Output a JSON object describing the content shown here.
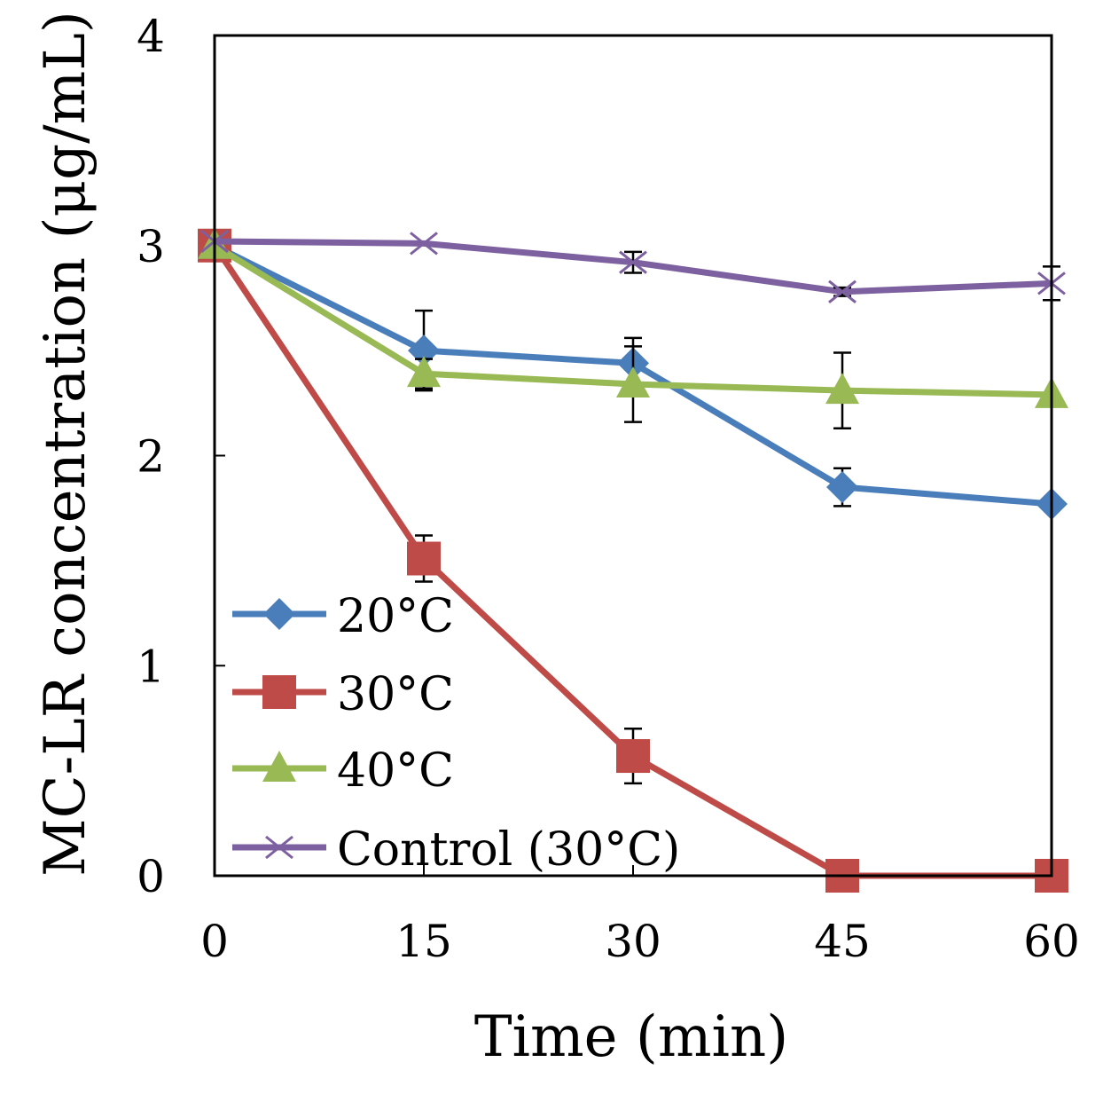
{
  "chart_data": {
    "type": "line",
    "title": "",
    "xlabel": "Time (min)",
    "ylabel": "MC-LR concentration (μg/mL)",
    "x": [
      0,
      15,
      30,
      45,
      60
    ],
    "x_ticks": [
      "0",
      "15",
      "30",
      "45",
      "60"
    ],
    "y_ticks": [
      "0",
      "1",
      "2",
      "3",
      "4"
    ],
    "xlim": [
      0,
      60
    ],
    "ylim": [
      0,
      4
    ],
    "grid": false,
    "legend_position": "bottom-left",
    "series": [
      {
        "name": "20°C",
        "color": "#4a7ebb",
        "marker": "diamond",
        "values": [
          3.0,
          2.5,
          2.44,
          1.85,
          1.77
        ],
        "errors": [
          0,
          0.19,
          0.12,
          0.09,
          0
        ]
      },
      {
        "name": "30°C",
        "color": "#be4b48",
        "marker": "square",
        "values": [
          3.0,
          1.51,
          0.57,
          0.0,
          0.0
        ],
        "errors": [
          0,
          0.11,
          0.13,
          0,
          0
        ]
      },
      {
        "name": "40°C",
        "color": "#98b954",
        "marker": "triangle",
        "values": [
          3.0,
          2.39,
          2.34,
          2.31,
          2.29
        ],
        "errors": [
          0,
          0.07,
          0.18,
          0.18,
          0
        ]
      },
      {
        "name": "Control (30°C)",
        "color": "#7d60a0",
        "marker": "x",
        "values": [
          3.02,
          3.01,
          2.92,
          2.78,
          2.82
        ],
        "errors": [
          0,
          0,
          0.05,
          0.02,
          0.08
        ]
      }
    ]
  }
}
